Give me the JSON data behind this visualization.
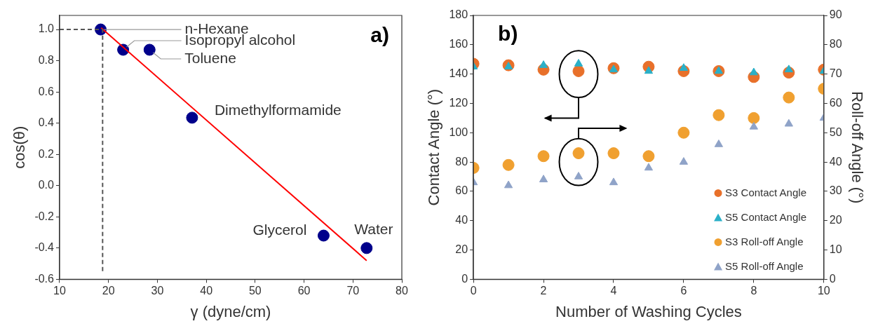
{
  "chart_data": [
    {
      "type": "scatter",
      "xlabel": "γ (dyne/cm)",
      "ylabel": "cos(θ)",
      "xlim": [
        10,
        80
      ],
      "xticks": [
        10,
        20,
        30,
        40,
        50,
        60,
        70,
        80
      ],
      "ylim": [
        -0.6,
        1.09
      ],
      "yticks": [
        -0.6,
        -0.4,
        -0.2,
        {
          "value": 0,
          "label": "0.0"
        },
        0.2,
        0.4,
        0.6,
        0.8,
        {
          "value": 1,
          "label": "1.0"
        }
      ],
      "grid": false,
      "legend": false,
      "marker": "circle",
      "annotations": [
        "a)",
        {
          "text": "n-Hexane",
          "x": 18.4,
          "y": 1
        },
        {
          "text": "Isopropyl alcohol",
          "x": 23,
          "y": 0.87
        },
        {
          "text": "Toluene",
          "x": 28.4,
          "y": 0.87
        },
        {
          "text": "Dimethylformamide",
          "x": 37.1,
          "y": 0.435
        },
        {
          "text": "Glycerol",
          "x": 64,
          "y": -0.32
        },
        {
          "text": "Water",
          "x": 72.8,
          "y": -0.4
        }
      ],
      "series": [
        {
          "type": "scatter",
          "color": "#00008b",
          "x": [
            18.4,
            23,
            28.4,
            37.1,
            64,
            72.8
          ],
          "values": [
            1,
            0.87,
            0.87,
            0.435,
            -0.32,
            -0.4
          ]
        },
        {
          "type": "line",
          "color": "#ff0000",
          "marker": "none",
          "x": [
            18.5,
            72.8
          ],
          "values": [
            1.01,
            -0.48
          ]
        },
        {
          "type": "line",
          "color": "#555555",
          "marker": "none",
          "line_style": "dashed",
          "x": [
            10,
            18.8,
            18.8
          ],
          "values": [
            1,
            1,
            -0.56
          ]
        }
      ]
    },
    {
      "type": "scatter",
      "xlabel": "Number of Washing Cycles",
      "ylabel": "Contact Angle (°)",
      "y2label": "Roll-off Angle (°)",
      "xlim": [
        0,
        10
      ],
      "xticks": [
        0,
        2,
        4,
        6,
        8,
        10
      ],
      "ylim": [
        0,
        180
      ],
      "yticks": [
        0,
        20,
        40,
        60,
        80,
        100,
        120,
        140,
        160,
        180
      ],
      "y2lim": [
        0,
        90
      ],
      "y2ticks": [
        0,
        10,
        20,
        30,
        40,
        50,
        60,
        70,
        80,
        90
      ],
      "grid": false,
      "legend": "bottom right",
      "annotations": [
        "b)"
      ],
      "series": [
        {
          "name": "S3 Contact Angle",
          "color": "#e8702a",
          "marker": "circle",
          "x": [
            0,
            1,
            2,
            3,
            4,
            5,
            6,
            7,
            8,
            9,
            10
          ],
          "values": [
            147,
            146,
            143,
            142,
            144,
            145,
            142,
            142,
            138,
            141,
            143
          ]
        },
        {
          "name": "S5 Contact Angle",
          "color": "#2ab0c8",
          "marker": "triangle",
          "x": [
            0,
            1,
            2,
            3,
            4,
            5,
            6,
            7,
            8,
            9,
            10
          ],
          "values": [
            145,
            145,
            146,
            147,
            143,
            142,
            144,
            142,
            141,
            143,
            142
          ]
        },
        {
          "name": "S3 Roll-off Angle",
          "color": "#f0a030",
          "marker": "circle",
          "axis": "y2",
          "x": [
            0,
            1,
            2,
            3,
            4,
            5,
            6,
            7,
            8,
            9,
            10
          ],
          "values": [
            38,
            39,
            42,
            43,
            43,
            42,
            50,
            56,
            55,
            62,
            65
          ]
        },
        {
          "name": "S5 Roll-off Angle",
          "color": "#8fa3c8",
          "marker": "triangle",
          "axis": "y2",
          "x": [
            0,
            1,
            2,
            3,
            4,
            5,
            6,
            7,
            8,
            9,
            10
          ],
          "values": [
            33,
            32,
            34,
            35,
            33,
            38,
            40,
            46,
            52,
            53,
            55
          ]
        }
      ]
    }
  ]
}
